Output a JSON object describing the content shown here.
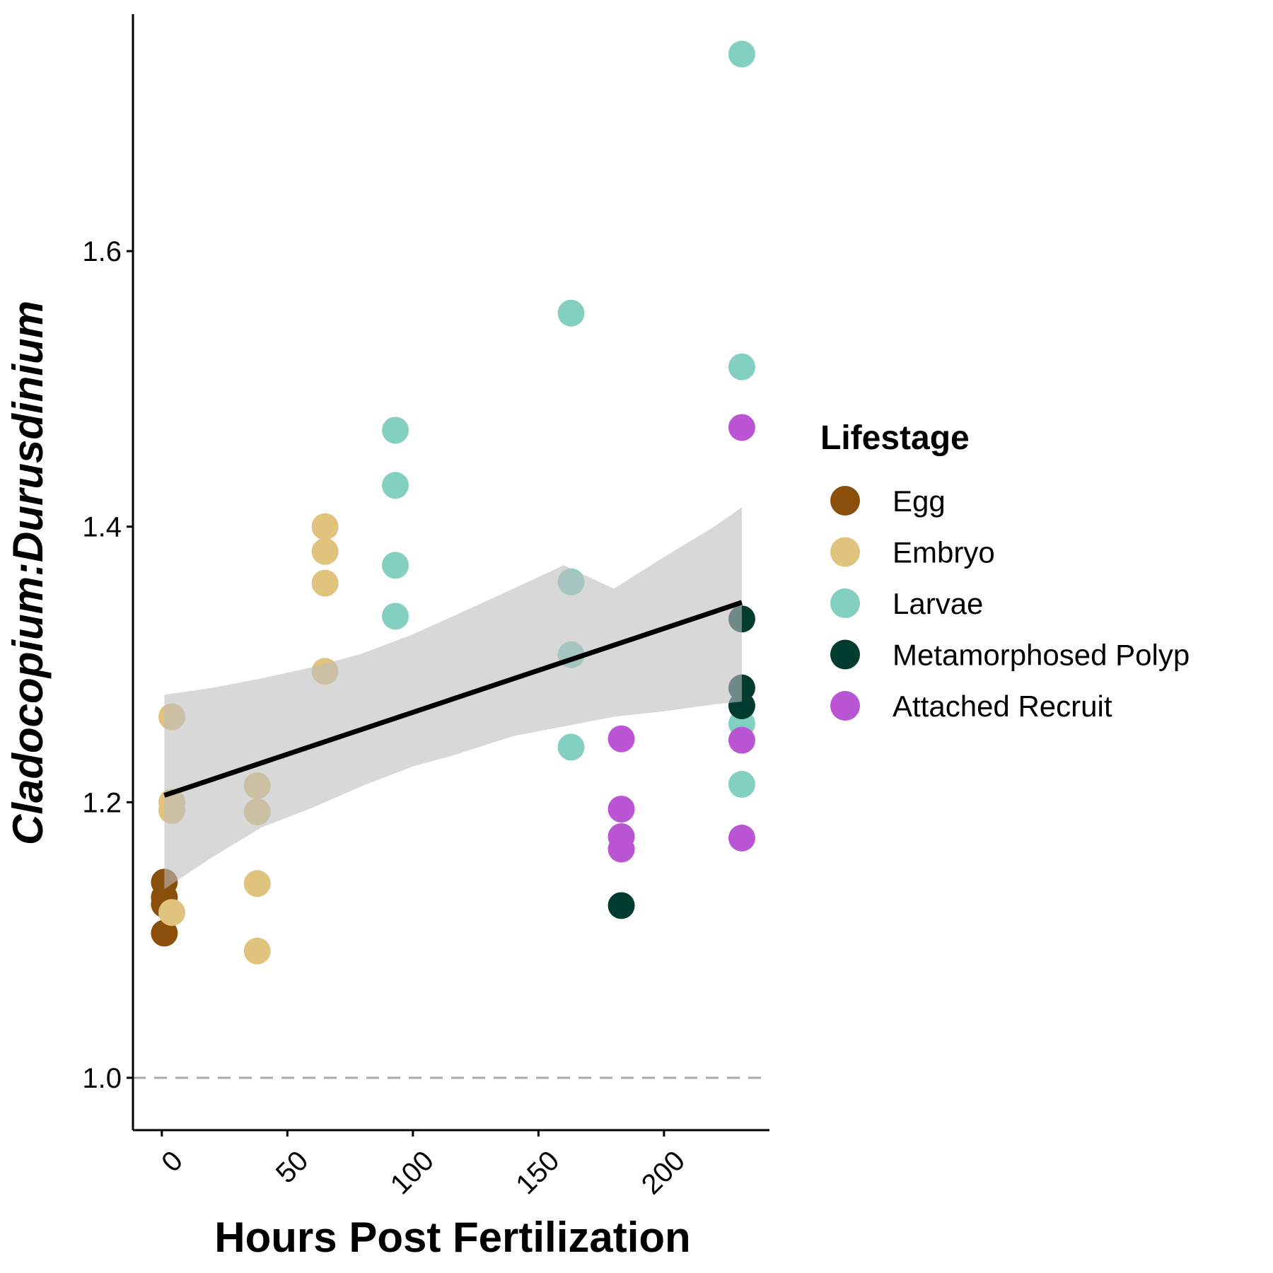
{
  "chart_data": {
    "type": "scatter",
    "xlabel": "Hours Post Fertilization",
    "ylabel": "Cladocopium:Durusdinium",
    "x_ticks": [
      0,
      50,
      100,
      150,
      200
    ],
    "y_ticks": [
      1.0,
      1.2,
      1.4,
      1.6
    ],
    "x_tick_labels": [
      "0",
      "50",
      "100",
      "150",
      "200"
    ],
    "y_tick_labels": [
      "1.0",
      "1.2",
      "1.4",
      "1.6"
    ],
    "xlim": [
      -11.5,
      242
    ],
    "ylim": [
      0.962,
      1.772
    ],
    "grid": false,
    "reference_line": {
      "y": 1.0,
      "style": "dashed",
      "color": "#aaaaaa"
    },
    "legend": {
      "title": "Lifestage",
      "position": "right"
    },
    "series": [
      {
        "name": "Egg",
        "color": "#8B4F0C",
        "points": [
          [
            1,
            1.142
          ],
          [
            1,
            1.131
          ],
          [
            1,
            1.126
          ],
          [
            1,
            1.105
          ]
        ]
      },
      {
        "name": "Embryo",
        "color": "#E0C37D",
        "points": [
          [
            4,
            1.262
          ],
          [
            4,
            1.2
          ],
          [
            4,
            1.194
          ],
          [
            4,
            1.12
          ],
          [
            38,
            1.212
          ],
          [
            38,
            1.193
          ],
          [
            38,
            1.141
          ],
          [
            38,
            1.092
          ],
          [
            65,
            1.4
          ],
          [
            65,
            1.382
          ],
          [
            65,
            1.359
          ],
          [
            65,
            1.295
          ]
        ]
      },
      {
        "name": "Larvae",
        "color": "#83CFC1",
        "points": [
          [
            93,
            1.47
          ],
          [
            93,
            1.43
          ],
          [
            93,
            1.372
          ],
          [
            93,
            1.335
          ],
          [
            163,
            1.555
          ],
          [
            163,
            1.36
          ],
          [
            163,
            1.307
          ],
          [
            163,
            1.24
          ],
          [
            231,
            1.743
          ],
          [
            231,
            1.516
          ],
          [
            231,
            1.257
          ],
          [
            231,
            1.213
          ]
        ]
      },
      {
        "name": "Metamorphosed Polyp",
        "color": "#003D30",
        "points": [
          [
            183,
            1.125
          ],
          [
            231,
            1.333
          ],
          [
            231,
            1.283
          ],
          [
            231,
            1.27
          ]
        ]
      },
      {
        "name": "Attached Recruit",
        "color": "#BA55D3",
        "points": [
          [
            183,
            1.246
          ],
          [
            183,
            1.195
          ],
          [
            183,
            1.175
          ],
          [
            183,
            1.166
          ],
          [
            231,
            1.472
          ],
          [
            231,
            1.245
          ],
          [
            231,
            1.174
          ]
        ]
      }
    ],
    "trend": {
      "line": [
        [
          1,
          1.205
        ],
        [
          231,
          1.345
        ]
      ],
      "ci_x": [
        1,
        20,
        40,
        60,
        80,
        100,
        116,
        140,
        160,
        180,
        200,
        220,
        231
      ],
      "ci_upper": [
        1.278,
        1.283,
        1.29,
        1.298,
        1.308,
        1.322,
        1.335,
        1.355,
        1.372,
        1.355,
        1.378,
        1.4,
        1.414
      ],
      "ci_lower": [
        1.137,
        1.16,
        1.182,
        1.196,
        1.212,
        1.226,
        1.234,
        1.248,
        1.255,
        1.262,
        1.266,
        1.271,
        1.273
      ],
      "line_color": "#000000",
      "band_color": "#BEBEBE"
    }
  }
}
